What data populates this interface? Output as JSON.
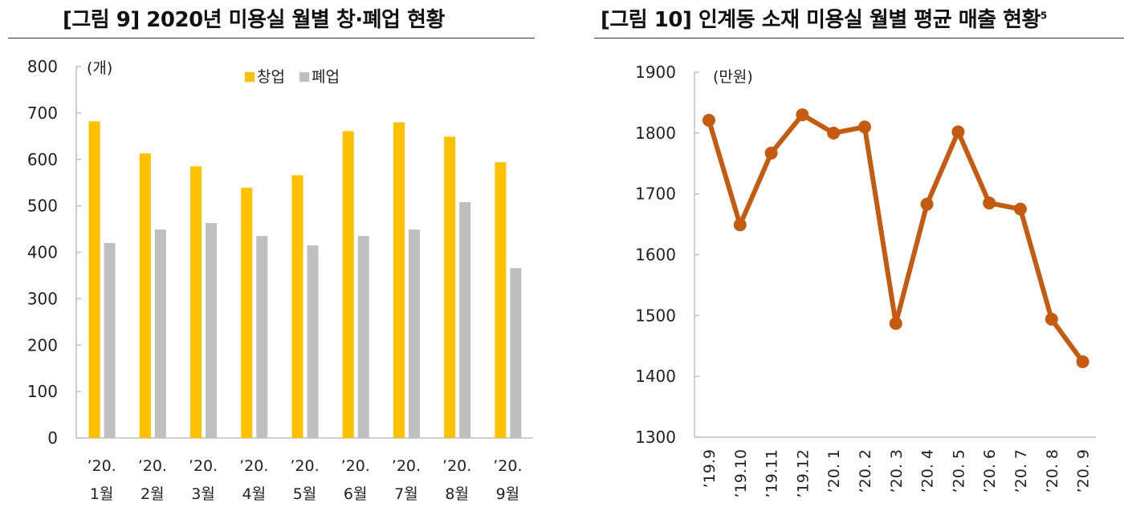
{
  "chart_data": [
    {
      "type": "bar",
      "title": "[그림 9] 2020년 미용실 월별 창·폐업 현황",
      "unit_label": "(개)",
      "categories": [
        {
          "line1": "’20.",
          "line2": "1월"
        },
        {
          "line1": "’20.",
          "line2": "2월"
        },
        {
          "line1": "’20.",
          "line2": "3월"
        },
        {
          "line1": "’20.",
          "line2": "4월"
        },
        {
          "line1": "’20.",
          "line2": "5월"
        },
        {
          "line1": "’20.",
          "line2": "6월"
        },
        {
          "line1": "’20.",
          "line2": "7월"
        },
        {
          "line1": "’20.",
          "line2": "8월"
        },
        {
          "line1": "’20.",
          "line2": "9월"
        }
      ],
      "series": [
        {
          "name": "창업",
          "color": "#FFC000",
          "values": [
            682,
            613,
            585,
            539,
            566,
            661,
            680,
            649,
            594
          ]
        },
        {
          "name": "폐업",
          "color": "#BFBFBF",
          "values": [
            420,
            449,
            463,
            435,
            415,
            435,
            449,
            508,
            366
          ]
        }
      ],
      "ylim": [
        0,
        800
      ],
      "yticks": [
        "0",
        "100",
        "200",
        "300",
        "400",
        "500",
        "600",
        "700",
        "800"
      ],
      "legend_position": "top-center",
      "grid": false
    },
    {
      "type": "line",
      "title": "[그림 10] 인계동 소재 미용실 월별 평균 매출 현황",
      "title_suffix": "5",
      "unit_label": "(만원)",
      "categories": [
        "’19.9",
        "’19.10",
        "’19.11",
        "’19.12",
        "’20. 1",
        "’20. 2",
        "’20. 3",
        "’20. 4",
        "’20. 5",
        "’20. 6",
        "’20. 7",
        "’20. 8",
        "’20. 9"
      ],
      "series": [
        {
          "name": "평균 매출",
          "color": "#C55A11",
          "values": [
            1821,
            1649,
            1767,
            1830,
            1800,
            1810,
            1487,
            1683,
            1802,
            1685,
            1675,
            1494,
            1424
          ]
        }
      ],
      "ylim": [
        1300,
        1900
      ],
      "yticks": [
        "1300",
        "1400",
        "1500",
        "1600",
        "1700",
        "1800",
        "1900"
      ],
      "grid": false
    }
  ]
}
